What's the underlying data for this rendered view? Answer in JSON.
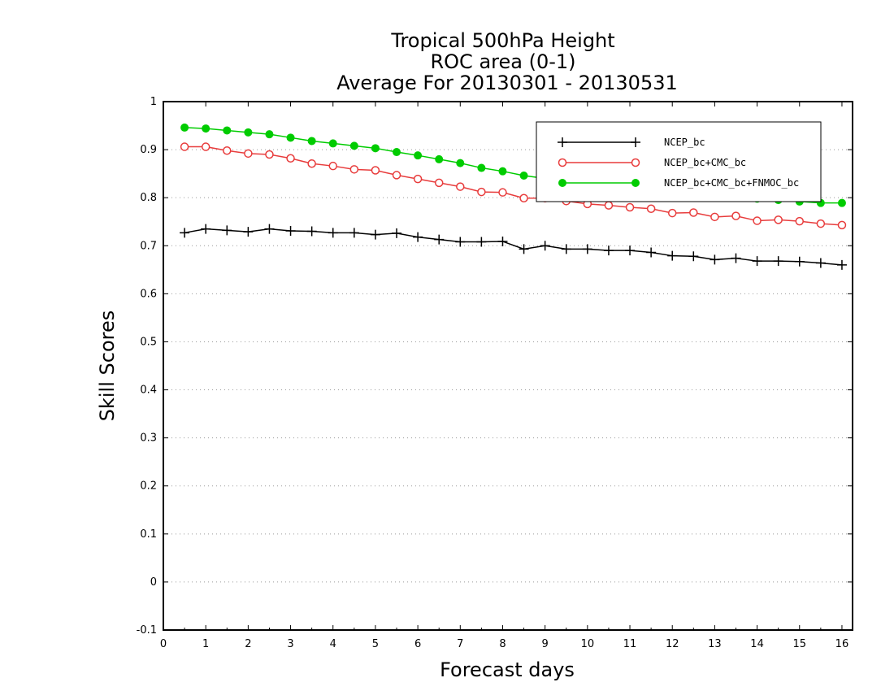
{
  "chart_data": {
    "type": "line",
    "title_lines": [
      "Tropical 500hPa Height",
      "ROC area (0-1)",
      "Average For 20130301 - 20130531"
    ],
    "xlabel": "Forecast days",
    "ylabel": "Skill Scores",
    "xlim": [
      0,
      16.25
    ],
    "ylim": [
      -0.1,
      1
    ],
    "xticks": [
      "0",
      "1",
      "2",
      "3",
      "4",
      "5",
      "6",
      "7",
      "8",
      "9",
      "10",
      "11",
      "12",
      "13",
      "14",
      "15",
      "16"
    ],
    "yticks": [
      "-0.1",
      "0",
      "0.1",
      "0.2",
      "0.3",
      "0.4",
      "0.5",
      "0.6",
      "0.7",
      "0.8",
      "0.9",
      "1"
    ],
    "grid": "horizontal dotted",
    "legend_position": "top-right",
    "x": [
      0.5,
      1,
      1.5,
      2,
      2.5,
      3,
      3.5,
      4,
      4.5,
      5,
      5.5,
      6,
      6.5,
      7,
      7.5,
      8,
      8.5,
      9,
      9.5,
      10,
      10.5,
      11,
      11.5,
      12,
      12.5,
      13,
      13.5,
      14,
      14.5,
      15,
      15.5,
      16
    ],
    "series": [
      {
        "name": "NCEP_bc",
        "color": "#000000",
        "marker": "plus",
        "values": [
          0.727,
          0.735,
          0.732,
          0.729,
          0.735,
          0.731,
          0.73,
          0.727,
          0.727,
          0.723,
          0.726,
          0.718,
          0.713,
          0.708,
          0.708,
          0.709,
          0.693,
          0.7,
          0.693,
          0.693,
          0.69,
          0.69,
          0.686,
          0.679,
          0.678,
          0.671,
          0.674,
          0.668,
          0.668,
          0.667,
          0.664,
          0.66
        ]
      },
      {
        "name": "NCEP_bc+CMC_bc",
        "color": "#e83c3c",
        "marker": "open-circle",
        "values": [
          0.906,
          0.906,
          0.898,
          0.892,
          0.89,
          0.882,
          0.871,
          0.866,
          0.859,
          0.857,
          0.847,
          0.839,
          0.831,
          0.823,
          0.812,
          0.811,
          0.799,
          0.799,
          0.793,
          0.787,
          0.784,
          0.78,
          0.777,
          0.768,
          0.769,
          0.76,
          0.762,
          0.752,
          0.754,
          0.751,
          0.746,
          0.743
        ]
      },
      {
        "name": "NCEP_bc+CMC_bc+FNMOC_bc",
        "color": "#00cc00",
        "marker": "filled-circle",
        "values": [
          0.946,
          0.944,
          0.94,
          0.936,
          0.932,
          0.925,
          0.918,
          0.913,
          0.908,
          0.903,
          0.895,
          0.888,
          0.88,
          0.872,
          0.862,
          0.855,
          0.846,
          0.84,
          0.833,
          0.827,
          0.822,
          0.818,
          0.815,
          0.81,
          0.808,
          0.804,
          0.801,
          0.798,
          0.795,
          0.792,
          0.789,
          0.789
        ]
      }
    ]
  }
}
